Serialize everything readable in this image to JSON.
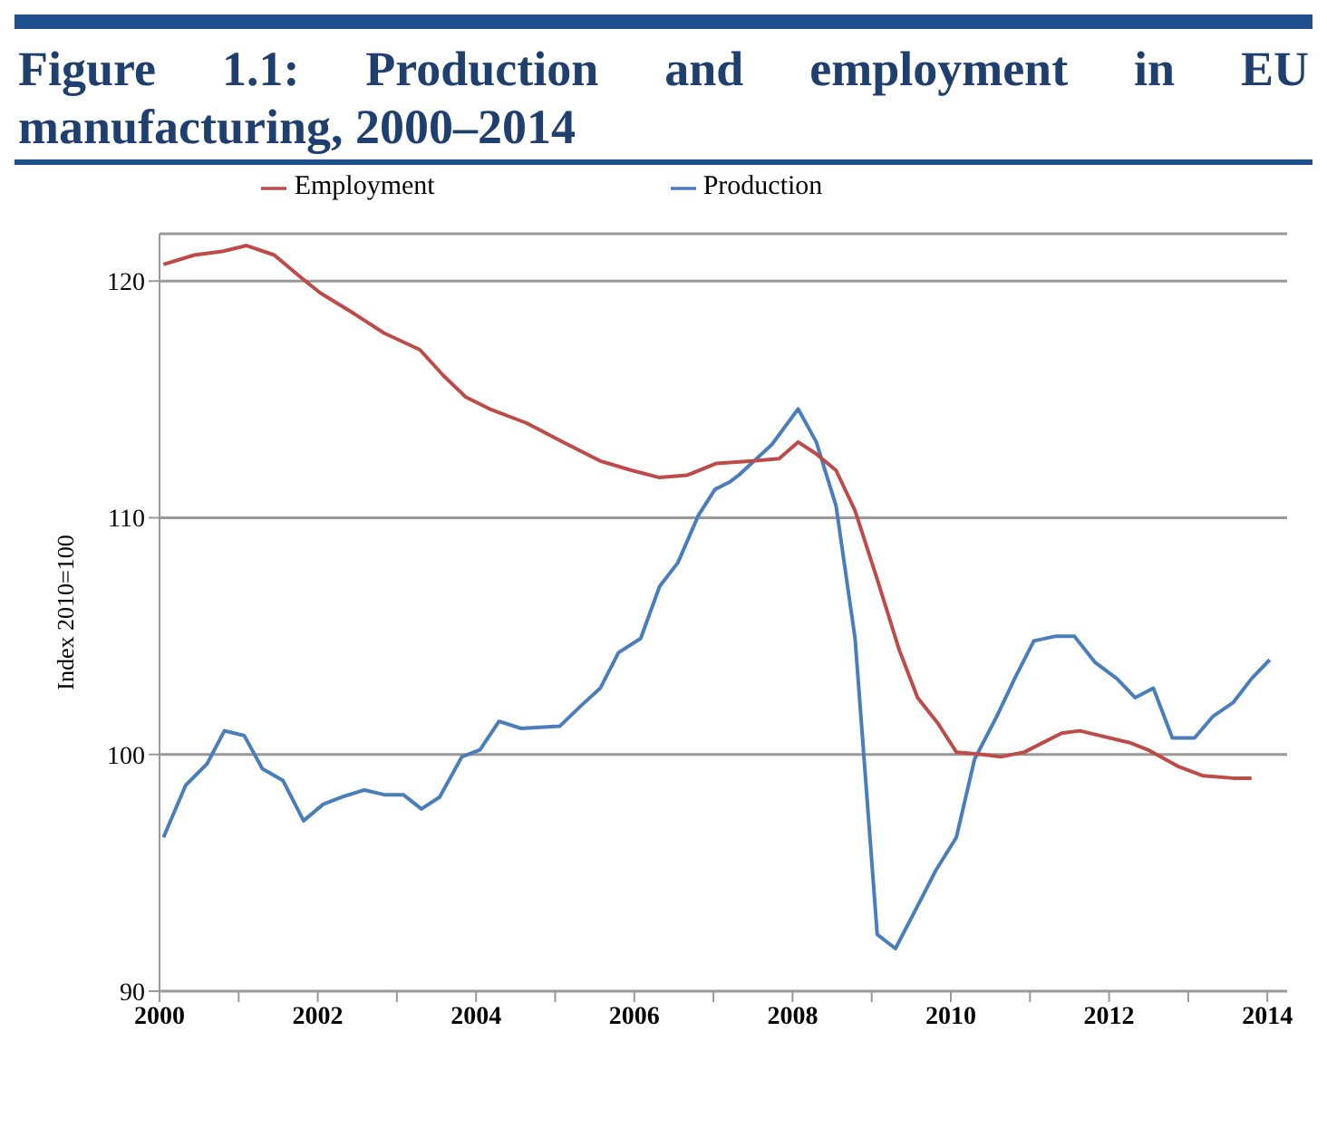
{
  "chart_data": {
    "type": "line",
    "title": "Figure 1.1: Production and employment in EU manufacturing, 2000–2014",
    "ylabel": "Index 2010=100",
    "xlim": [
      2000,
      2014.25
    ],
    "xticks": [
      2000,
      {
        "value": 2001,
        "label": null
      },
      2002,
      {
        "value": 2003,
        "label": null
      },
      2004,
      {
        "value": 2005,
        "label": null
      },
      2006,
      {
        "value": 2007,
        "label": null
      },
      2008,
      {
        "value": 2009,
        "label": null
      },
      2010,
      {
        "value": 2011,
        "label": null
      },
      2012,
      {
        "value": 2013,
        "label": null
      },
      2014
    ],
    "ylim": [
      90,
      122
    ],
    "yticks": [
      90,
      100,
      110,
      120
    ],
    "grid": "y",
    "legend": "top",
    "marker": "none",
    "line_style": "solid",
    "series": [
      {
        "name": "Production",
        "color": "#4a7ebb",
        "x": [
          2000.05,
          2000.33,
          2000.6,
          2000.82,
          2001.07,
          2001.3,
          2001.56,
          2001.82,
          2002.07,
          2002.3,
          2002.59,
          2002.84,
          2003.08,
          2003.31,
          2003.54,
          2003.82,
          2004.05,
          2004.29,
          2004.57,
          2005.06,
          2005.34,
          2005.57,
          2005.8,
          2006.08,
          2006.32,
          2006.55,
          2006.81,
          2007.02,
          2007.2,
          2007.32,
          2007.74,
          2008.07,
          2008.3,
          2008.55,
          2008.79,
          2009.07,
          2009.3,
          2009.58,
          2009.81,
          2010.07,
          2010.3,
          2010.58,
          2010.82,
          2011.05,
          2011.33,
          2011.56,
          2011.82,
          2012.1,
          2012.33,
          2012.56,
          2012.8,
          2013.08,
          2013.31,
          2013.57,
          2013.8,
          2014.03
        ],
        "values": [
          96.5,
          98.7,
          99.6,
          101.0,
          100.8,
          99.4,
          98.9,
          97.2,
          97.9,
          98.2,
          98.5,
          98.3,
          98.3,
          97.7,
          98.2,
          99.9,
          100.2,
          101.4,
          101.1,
          101.2,
          102.1,
          102.8,
          104.3,
          104.9,
          107.1,
          108.1,
          110.1,
          111.2,
          111.5,
          111.8,
          113.1,
          114.6,
          113.2,
          110.5,
          104.9,
          92.4,
          91.8,
          93.6,
          95.1,
          96.5,
          99.8,
          101.6,
          103.3,
          104.8,
          105.0,
          105.0,
          103.9,
          103.2,
          102.4,
          102.8,
          100.7,
          100.7,
          101.6,
          102.2,
          103.2,
          104.0
        ]
      },
      {
        "name": "Employment",
        "color": "#be4b48",
        "x": [
          2000.05,
          2000.44,
          2000.79,
          2001.1,
          2001.45,
          2001.77,
          2002.03,
          2002.47,
          2002.84,
          2003.29,
          2003.59,
          2003.87,
          2004.17,
          2004.64,
          2005.1,
          2005.57,
          2005.97,
          2006.32,
          2006.67,
          2007.04,
          2007.5,
          2007.83,
          2008.07,
          2008.3,
          2008.55,
          2008.79,
          2009.07,
          2009.35,
          2009.58,
          2009.84,
          2010.07,
          2010.4,
          2010.63,
          2010.93,
          2011.4,
          2011.63,
          2012.26,
          2012.49,
          2012.87,
          2013.19,
          2013.57,
          2013.8
        ],
        "values": [
          120.7,
          121.1,
          121.25,
          121.5,
          121.1,
          120.2,
          119.5,
          118.6,
          117.8,
          117.1,
          116.0,
          115.1,
          114.6,
          114.0,
          113.2,
          112.4,
          112.0,
          111.7,
          111.8,
          112.3,
          112.4,
          112.5,
          113.2,
          112.7,
          112.0,
          110.3,
          107.4,
          104.4,
          102.4,
          101.3,
          100.1,
          100.0,
          99.9,
          100.1,
          100.9,
          101.0,
          100.5,
          100.2,
          99.5,
          99.1,
          99.0,
          99.0
        ]
      }
    ]
  }
}
